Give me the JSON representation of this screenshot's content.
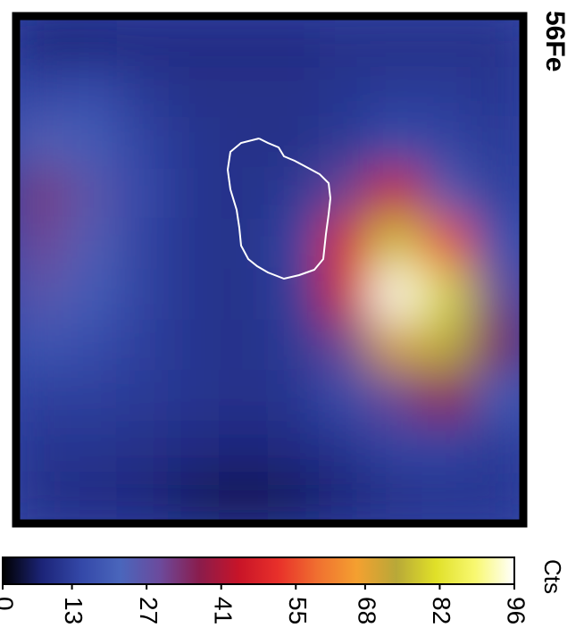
{
  "chart_data": {
    "type": "heatmap",
    "title": "56Fe",
    "colorbar_label": "Cts",
    "z": [
      [
        8,
        8,
        9,
        9,
        9,
        9,
        10,
        10,
        10,
        10
      ],
      [
        14,
        16,
        12,
        10,
        10,
        10,
        11,
        12,
        12,
        11
      ],
      [
        24,
        20,
        14,
        11,
        10,
        10,
        12,
        16,
        14,
        12
      ],
      [
        32,
        26,
        15,
        11,
        10,
        12,
        30,
        45,
        25,
        13
      ],
      [
        30,
        24,
        14,
        11,
        10,
        14,
        48,
        78,
        55,
        18
      ],
      [
        26,
        20,
        14,
        11,
        10,
        13,
        45,
        95,
        80,
        30
      ],
      [
        18,
        16,
        13,
        11,
        10,
        12,
        30,
        70,
        75,
        35
      ],
      [
        13,
        13,
        12,
        11,
        10,
        11,
        16,
        30,
        38,
        20
      ],
      [
        11,
        11,
        10,
        9,
        8,
        9,
        11,
        14,
        14,
        12
      ],
      [
        10,
        9,
        8,
        6,
        5,
        6,
        8,
        10,
        11,
        11
      ]
    ],
    "zlim": [
      0,
      96
    ],
    "zticks": [
      0,
      13,
      27,
      41,
      55,
      68,
      82,
      96
    ],
    "colormap": [
      "#000000",
      "#1c2478",
      "#3448a8",
      "#4a66bc",
      "#6c4a9c",
      "#8a1c4c",
      "#c81428",
      "#e8302a",
      "#f07030",
      "#f4a030",
      "#b8a838",
      "#e0e028",
      "#f8f870",
      "#ffffff"
    ]
  }
}
